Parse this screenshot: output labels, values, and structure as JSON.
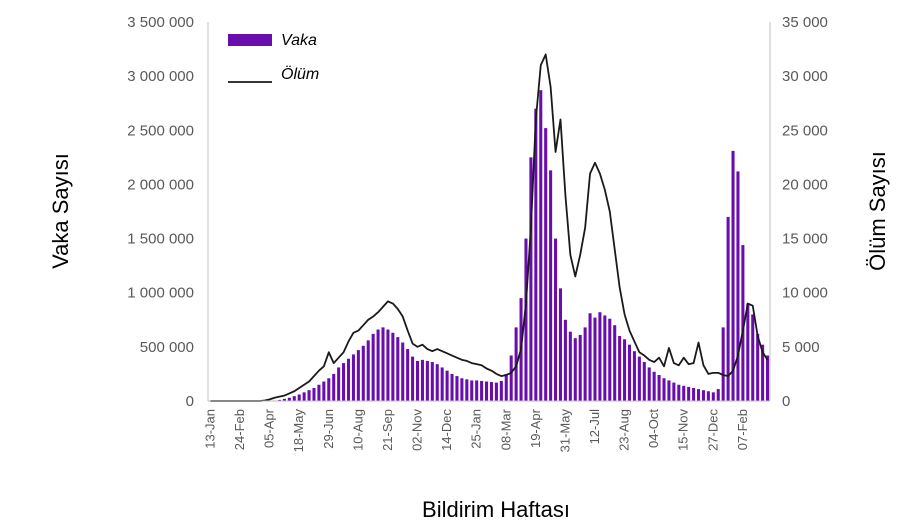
{
  "chart_data": {
    "type": "bar+line",
    "xlabel": "Bildirim Haftası",
    "ylabel_left": "Vaka Sayısı",
    "ylabel_right": "Ölüm Sayısı",
    "ylim_left": [
      0,
      3500000
    ],
    "ylim_right": [
      0,
      35000
    ],
    "yticks_left": [
      "0",
      "500 000",
      "1 000 000",
      "1 500 000",
      "2 000 000",
      "2 500 000",
      "3 000 000",
      "3 500 000"
    ],
    "yticks_right": [
      "0",
      "5 000",
      "10 000",
      "15 000",
      "20 000",
      "25 000",
      "30 000",
      "35 000"
    ],
    "x_tick_labels": [
      "13-Jan",
      "24-Feb",
      "05-Apr",
      "18-May",
      "29-Jun",
      "10-Aug",
      "21-Sep",
      "02-Nov",
      "14-Dec",
      "25-Jan",
      "08-Mar",
      "19-Apr",
      "31-May",
      "12-Jul",
      "23-Aug",
      "04-Oct",
      "15-Nov",
      "27-Dec",
      "07-Feb"
    ],
    "x_tick_week_index": [
      0,
      6,
      12,
      18,
      24,
      30,
      36,
      42,
      48,
      54,
      60,
      66,
      72,
      78,
      84,
      90,
      96,
      102,
      108
    ],
    "grid": false,
    "legend": "top-left",
    "colors": {
      "bars": "#6a0dad",
      "line": "#1a1a1a",
      "axis": "#bfbfbf"
    },
    "series": [
      {
        "name": "Vaka",
        "type": "bar",
        "axis": "left",
        "values": [
          0,
          0,
          0,
          0,
          0,
          0,
          0,
          0,
          0,
          0,
          0,
          0,
          2000,
          5000,
          10000,
          20000,
          30000,
          45000,
          60000,
          80000,
          100000,
          120000,
          150000,
          180000,
          210000,
          250000,
          310000,
          350000,
          390000,
          430000,
          470000,
          510000,
          560000,
          620000,
          660000,
          680000,
          660000,
          630000,
          590000,
          540000,
          480000,
          410000,
          370000,
          380000,
          370000,
          360000,
          340000,
          310000,
          280000,
          250000,
          230000,
          210000,
          200000,
          190000,
          190000,
          185000,
          180000,
          175000,
          170000,
          185000,
          250000,
          420000,
          680000,
          950000,
          1500000,
          2250000,
          2700000,
          2870000,
          2520000,
          2130000,
          1500000,
          1040000,
          750000,
          640000,
          580000,
          610000,
          680000,
          810000,
          770000,
          820000,
          790000,
          760000,
          700000,
          600000,
          570000,
          520000,
          460000,
          410000,
          360000,
          310000,
          270000,
          240000,
          210000,
          190000,
          170000,
          150000,
          140000,
          130000,
          120000,
          110000,
          100000,
          90000,
          80000,
          110000,
          680000,
          1700000,
          2310000,
          2120000,
          1440000,
          900000,
          800000,
          620000,
          520000,
          420000
        ]
      },
      {
        "name": "Ölüm",
        "type": "line",
        "axis": "right",
        "values": [
          0,
          0,
          0,
          0,
          0,
          0,
          0,
          0,
          0,
          0,
          0,
          50,
          150,
          300,
          400,
          500,
          700,
          900,
          1200,
          1500,
          1800,
          2300,
          2800,
          3200,
          4500,
          3500,
          4000,
          4500,
          5500,
          6300,
          6500,
          7000,
          7500,
          7800,
          8200,
          8700,
          9200,
          9000,
          8500,
          7800,
          6500,
          5300,
          5000,
          5200,
          4800,
          4600,
          4800,
          4600,
          4400,
          4200,
          4000,
          3800,
          3700,
          3500,
          3400,
          3300,
          3000,
          2800,
          2500,
          2300,
          2400,
          2600,
          3200,
          4800,
          9000,
          16000,
          26000,
          31000,
          32000,
          29000,
          23000,
          26000,
          19000,
          13500,
          11500,
          13500,
          16000,
          21000,
          22000,
          21000,
          19500,
          17500,
          14000,
          10500,
          8000,
          6500,
          5500,
          4500,
          4200,
          3800,
          3600,
          4000,
          3200,
          4900,
          3500,
          3300,
          4000,
          3400,
          3500,
          5400,
          3300,
          2500,
          2600,
          2600,
          2400,
          2300,
          2800,
          4200,
          6500,
          9000,
          8800,
          6000,
          4500,
          3800
        ]
      }
    ]
  }
}
